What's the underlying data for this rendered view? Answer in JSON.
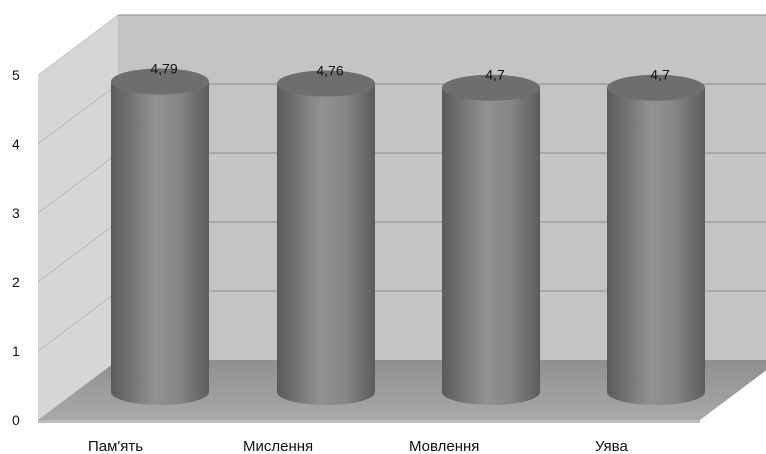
{
  "chart_data": {
    "type": "bar",
    "style": "3d-cylinder",
    "categories": [
      "Пам'ять",
      "Мислення",
      "Мовлення",
      "Уява"
    ],
    "values": [
      4.79,
      4.76,
      4.7,
      4.7
    ],
    "value_labels": [
      "4,79",
      "4,76",
      "4,7",
      "4,7"
    ],
    "title": "",
    "xlabel": "",
    "ylabel": "",
    "ylim": [
      0,
      5
    ],
    "yticks": [
      0,
      1,
      2,
      3,
      4,
      5
    ],
    "grid": true,
    "legend": "none",
    "colors": {
      "back_wall": "#c4c4c4",
      "side_wall": "#d6d6d6",
      "floor": "#9a9a9a",
      "floor_front": "#bdbdbd",
      "gridline": "#8a8a8a",
      "bar_dark": "#5a5a5a",
      "bar_mid": "#8e8e8e",
      "bar_top": "#6e6e6e"
    }
  }
}
